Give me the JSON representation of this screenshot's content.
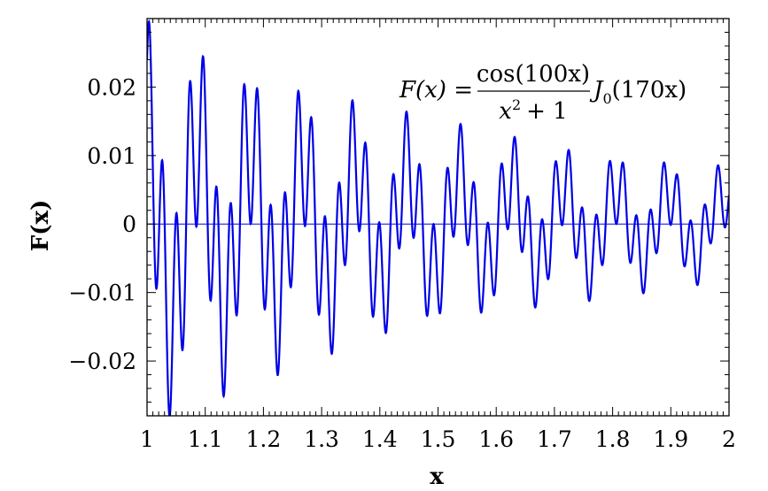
{
  "chart_data": {
    "type": "line",
    "xlabel": "x",
    "ylabel": "F(x)",
    "xlim": [
      1,
      2
    ],
    "ylim": [
      -0.028,
      0.03
    ],
    "xticks": [
      1,
      1.1,
      1.2,
      1.3,
      1.4,
      1.5,
      1.6,
      1.7,
      1.8,
      1.9,
      2
    ],
    "xtick_labels": [
      "1",
      "1.1",
      "1.2",
      "1.3",
      "1.4",
      "1.5",
      "1.6",
      "1.7",
      "1.8",
      "1.9",
      "2"
    ],
    "yticks": [
      -0.02,
      -0.01,
      0,
      0.01,
      0.02
    ],
    "ytick_labels": [
      "−0.02",
      "−0.01",
      "0",
      "0.01",
      "0.02"
    ],
    "grid": false,
    "zero_line": true,
    "annotation": {
      "lhs": "F(x) =",
      "numerator": "cos(100x)",
      "denominator_base": "x",
      "denominator_exp": "2",
      "denominator_rest": "+ 1",
      "bessel": "J",
      "bessel_order": "0",
      "bessel_arg": "(170x)"
    },
    "series": [
      {
        "function": "cos(100x) / (x^2 + 1) * J0(170x)",
        "x_range": [
          1,
          2
        ],
        "color": "#0000e6"
      }
    ]
  }
}
